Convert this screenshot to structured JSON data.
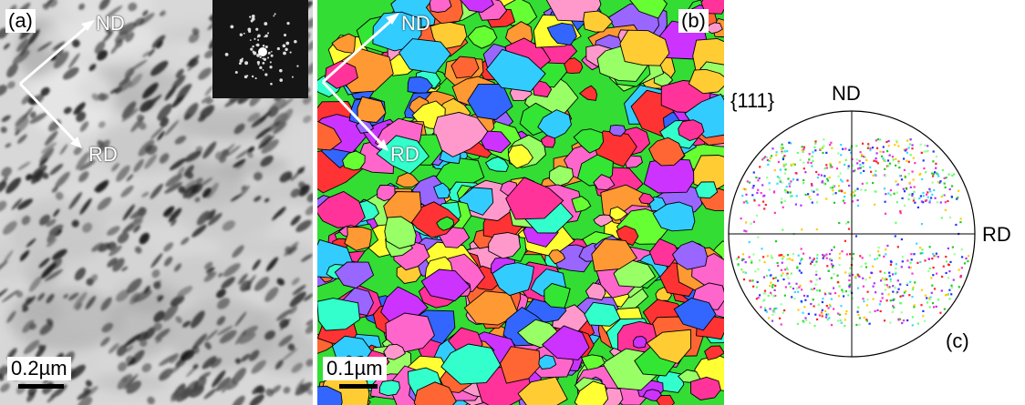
{
  "panel_a": {
    "letter": "(a)",
    "label_nd": "ND",
    "label_rd": "RD",
    "scale_label": "0.2µm"
  },
  "panel_b": {
    "letter": "(b)",
    "label_nd": "ND",
    "label_rd": "RD",
    "scale_label": "0.1µm"
  },
  "panel_c": {
    "letter": "(c)",
    "plane": "{111}",
    "label_nd": "ND",
    "label_rd": "RD"
  },
  "colors": {
    "tem_light": "#e6e6e6",
    "tem_dark": "#2a2a2a",
    "grain_palette": [
      "#33e633",
      "#66ff33",
      "#ff3333",
      "#ff66cc",
      "#cc33ff",
      "#ffcc33",
      "#33ccff",
      "#ff9933",
      "#3366ff",
      "#ff3399",
      "#99ff66",
      "#ffff33",
      "#ff6633",
      "#9966ff",
      "#33ffcc",
      "#ff99cc"
    ]
  }
}
